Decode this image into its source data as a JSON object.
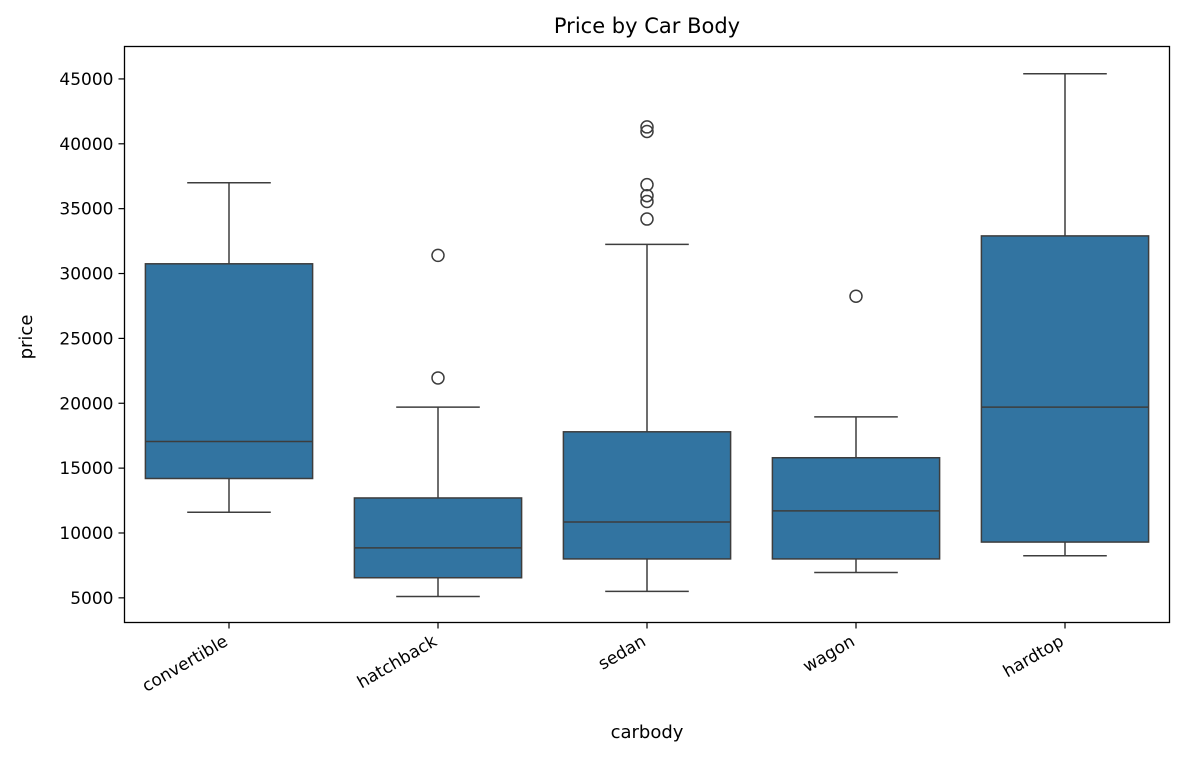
{
  "chart_data": {
    "type": "box",
    "title": "Price by Car Body",
    "xlabel": "carbody",
    "ylabel": "price",
    "categories": [
      "convertible",
      "hatchback",
      "sedan",
      "wagon",
      "hardtop"
    ],
    "ylim": [
      3100,
      47500
    ],
    "yticks": [
      5000,
      10000,
      15000,
      20000,
      25000,
      30000,
      35000,
      40000,
      45000
    ],
    "box_color": "#3274a1",
    "line_color": "#3d3d3d",
    "grid": false,
    "boxes": [
      {
        "category": "convertible",
        "whisker_low": 11600,
        "q1": 14200,
        "median": 17050,
        "q3": 30750,
        "whisker_high": 37000,
        "outliers": []
      },
      {
        "category": "hatchback",
        "whisker_low": 5100,
        "q1": 6550,
        "median": 8850,
        "q3": 12700,
        "whisker_high": 19700,
        "outliers": [
          21950,
          31400
        ]
      },
      {
        "category": "sedan",
        "whisker_low": 5500,
        "q1": 8000,
        "median": 10850,
        "q3": 17800,
        "whisker_high": 32250,
        "outliers": [
          34200,
          35550,
          36000,
          36850,
          40950,
          41300
        ]
      },
      {
        "category": "wagon",
        "whisker_low": 6950,
        "q1": 8000,
        "median": 11700,
        "q3": 15800,
        "whisker_high": 18950,
        "outliers": [
          28250
        ]
      },
      {
        "category": "hardtop",
        "whisker_low": 8250,
        "q1": 9300,
        "median": 19700,
        "q3": 32900,
        "whisker_high": 45400,
        "outliers": []
      }
    ]
  }
}
